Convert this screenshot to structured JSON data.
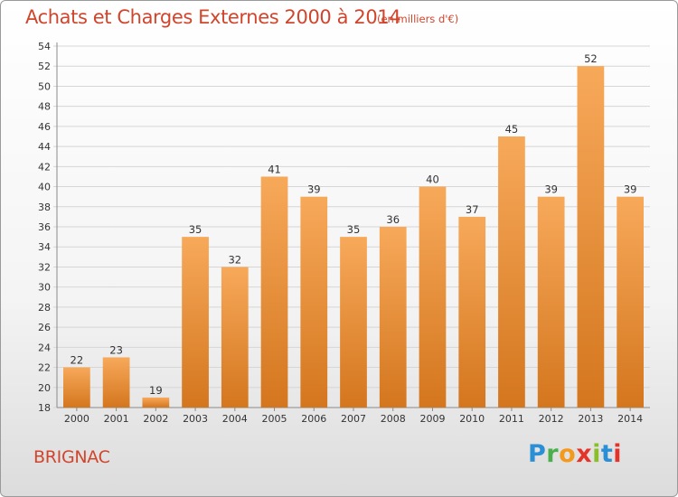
{
  "title": "Achats et Charges Externes 2000 à 2014",
  "subtitle": "(en milliers d'€)",
  "place": "BRIGNAC",
  "logo": {
    "p": "P",
    "r": "r",
    "o": "o",
    "x": "x",
    "i": "i",
    "t": "t",
    "i2": "i"
  },
  "colors": {
    "accent": "#d0452c",
    "bar_top": "#f7a95a",
    "bar_bottom": "#d4761e",
    "grid": "#d6d6d6"
  },
  "chart_data": {
    "type": "bar",
    "categories": [
      "2000",
      "2001",
      "2002",
      "2003",
      "2004",
      "2005",
      "2006",
      "2007",
      "2008",
      "2009",
      "2010",
      "2011",
      "2012",
      "2013",
      "2014"
    ],
    "values": [
      22,
      23,
      19,
      35,
      32,
      41,
      39,
      35,
      36,
      40,
      37,
      45,
      39,
      52,
      39
    ],
    "ylim": [
      18,
      54
    ],
    "yticks": [
      18,
      20,
      22,
      24,
      26,
      28,
      30,
      32,
      34,
      36,
      38,
      40,
      42,
      44,
      46,
      48,
      50,
      52,
      54
    ],
    "grid": true,
    "data_labels": true
  }
}
